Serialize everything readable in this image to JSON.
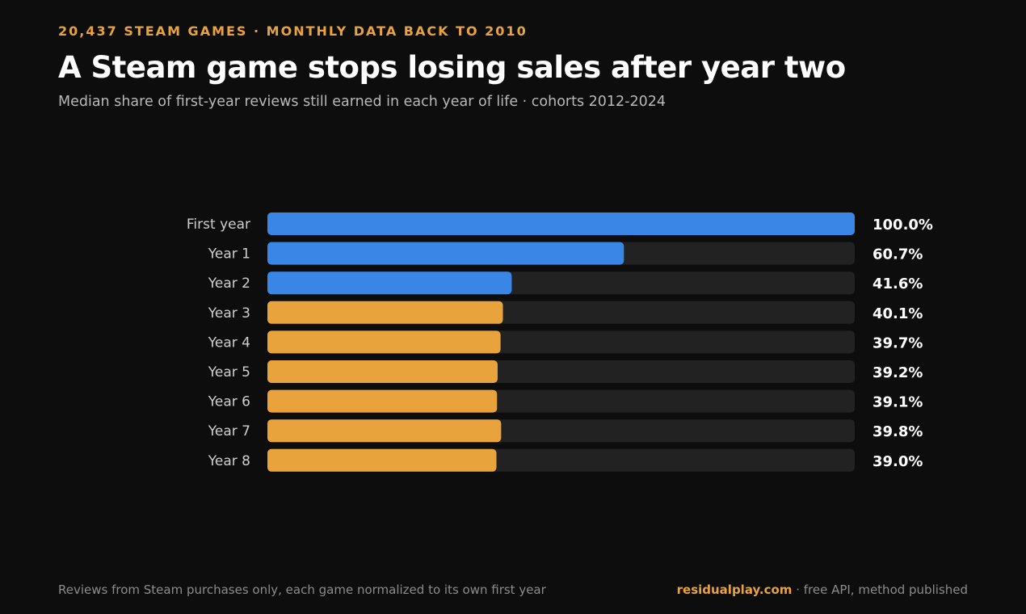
{
  "header": {
    "kicker": "20,437 STEAM GAMES · MONTHLY DATA BACK TO 2010",
    "title": "A Steam game stops losing sales after year two",
    "subtitle": "Median share of first-year reviews still earned in each year of life · cohorts 2012-2024"
  },
  "footer": {
    "note": "Reviews from Steam purchases only, each game normalized to its own first year",
    "brand": "residualplay.com",
    "brand_suffix": " · free API, method published"
  },
  "colors": {
    "background": "#0d0d0d",
    "track": "#222222",
    "declining": "#3a86e6",
    "flat": "#e8a33d"
  },
  "chart_data": {
    "type": "bar",
    "orientation": "horizontal",
    "title": "A Steam game stops losing sales after year two",
    "categories": [
      "First year",
      "Year 1",
      "Year 2",
      "Year 3",
      "Year 4",
      "Year 5",
      "Year 6",
      "Year 7",
      "Year 8"
    ],
    "values": [
      100.0,
      60.7,
      41.6,
      40.1,
      39.7,
      39.2,
      39.1,
      39.8,
      39.0
    ],
    "value_labels": [
      "100.0%",
      "60.7%",
      "41.6%",
      "40.1%",
      "39.7%",
      "39.2%",
      "39.1%",
      "39.8%",
      "39.0%"
    ],
    "bar_colors": [
      "#3a86e6",
      "#3a86e6",
      "#3a86e6",
      "#e8a33d",
      "#e8a33d",
      "#e8a33d",
      "#e8a33d",
      "#e8a33d",
      "#e8a33d"
    ],
    "xlim": [
      0,
      100
    ],
    "unit": "%",
    "grid": false,
    "legend": "none"
  }
}
